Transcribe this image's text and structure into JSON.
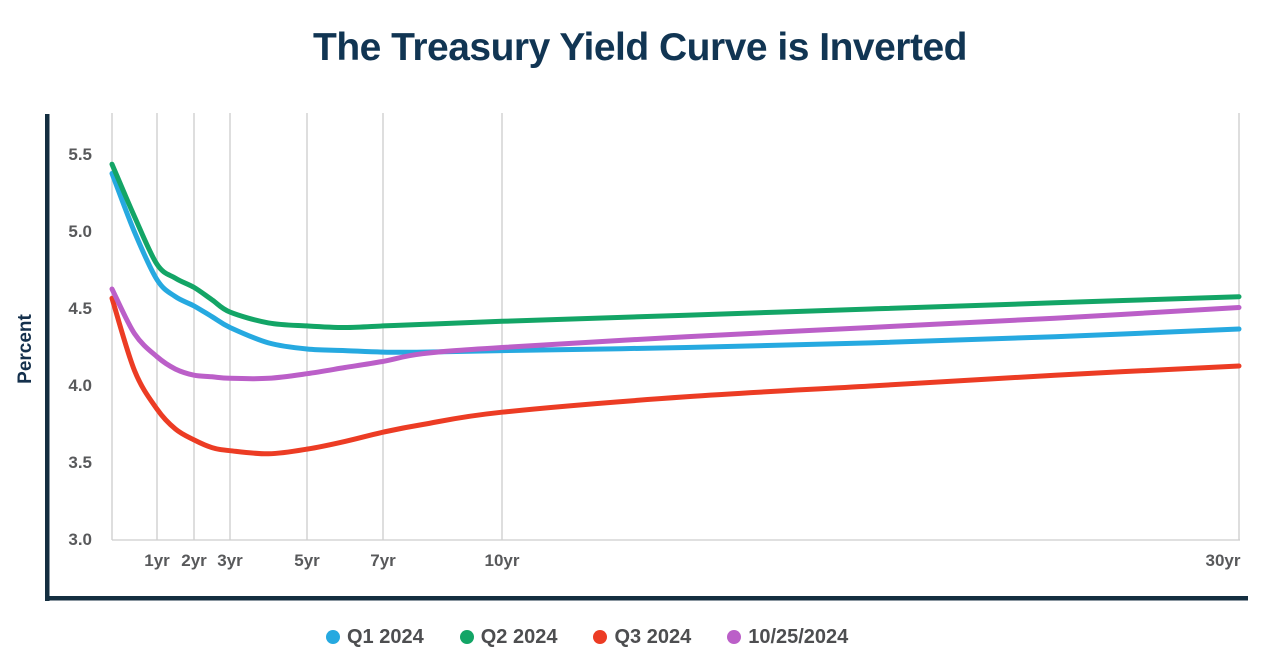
{
  "title": "The Treasury Yield Curve is Inverted",
  "chart_data": {
    "type": "line",
    "title": "The Treasury Yield Curve is Inverted",
    "xlabel": "",
    "ylabel": "Percent",
    "x_unit": "years to maturity",
    "ylim": [
      3.0,
      5.5
    ],
    "ytick_labels": [
      "5.5",
      "5.0",
      "4.5",
      "4.0",
      "3.5",
      "3.0"
    ],
    "ytick_values": [
      5.5,
      5.0,
      4.5,
      4.0,
      3.5,
      3.0
    ],
    "xtick_labels": [
      "1yr",
      "2yr",
      "3yr",
      "5yr",
      "7yr",
      "10yr",
      "30yr"
    ],
    "xtick_years": [
      1,
      2,
      3,
      5,
      7,
      10,
      30
    ],
    "grid": "vertical-only",
    "gridline_color": "#cdcdcd",
    "axis_color": "#142e40",
    "tick_text_color": "#58595b",
    "legend_position": "bottom",
    "x": [
      0,
      0.5,
      1,
      1.5,
      2,
      2.5,
      3,
      4,
      5,
      6,
      7,
      8,
      10,
      15,
      20,
      25,
      30
    ],
    "series": [
      {
        "name": "Q1 2024",
        "color": "#26a9e0",
        "values": [
          5.38,
          5.0,
          4.69,
          4.58,
          4.52,
          4.45,
          4.38,
          4.28,
          4.24,
          4.23,
          4.22,
          4.22,
          4.23,
          4.25,
          4.28,
          4.32,
          4.37
        ]
      },
      {
        "name": "Q2 2024",
        "color": "#13a566",
        "values": [
          5.44,
          5.1,
          4.79,
          4.7,
          4.64,
          4.56,
          4.48,
          4.41,
          4.39,
          4.38,
          4.39,
          4.4,
          4.42,
          4.46,
          4.5,
          4.54,
          4.58
        ]
      },
      {
        "name": "Q3 2024",
        "color": "#ec3c24",
        "values": [
          4.57,
          4.1,
          3.85,
          3.72,
          3.65,
          3.6,
          3.58,
          3.56,
          3.59,
          3.64,
          3.7,
          3.75,
          3.83,
          3.93,
          4.0,
          4.07,
          4.13
        ]
      },
      {
        "name": "10/25/2024",
        "color": "#bb5fc8",
        "values": [
          4.63,
          4.34,
          4.19,
          4.11,
          4.07,
          4.06,
          4.05,
          4.05,
          4.08,
          4.12,
          4.16,
          4.21,
          4.25,
          4.32,
          4.38,
          4.44,
          4.51
        ]
      }
    ]
  }
}
